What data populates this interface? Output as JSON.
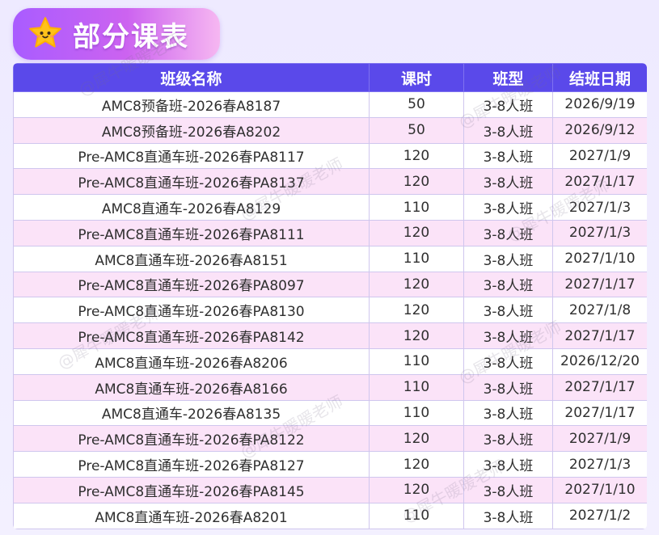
{
  "header": {
    "title": "部分课表"
  },
  "table": {
    "columns": [
      "班级名称",
      "课时",
      "班型",
      "结班日期"
    ],
    "rows": [
      [
        "AMC8预备班-2026春A8187",
        "50",
        "3-8人班",
        "2026/9/19"
      ],
      [
        "AMC8预备班-2026春A8202",
        "50",
        "3-8人班",
        "2026/9/12"
      ],
      [
        "Pre-AMC8直通车班-2026春PA8117",
        "120",
        "3-8人班",
        "2027/1/9"
      ],
      [
        "Pre-AMC8直通车班-2026春PA8137",
        "120",
        "3-8人班",
        "2027/1/17"
      ],
      [
        "AMC8直通车-2026春A8129",
        "110",
        "3-8人班",
        "2027/1/3"
      ],
      [
        "Pre-AMC8直通车班-2026春PA8111",
        "120",
        "3-8人班",
        "2027/1/3"
      ],
      [
        "AMC8直通车班-2026春A8151",
        "110",
        "3-8人班",
        "2027/1/10"
      ],
      [
        "Pre-AMC8直通车班-2026春PA8097",
        "120",
        "3-8人班",
        "2027/1/17"
      ],
      [
        "Pre-AMC8直通车班-2026春PA8130",
        "120",
        "3-8人班",
        "2027/1/8"
      ],
      [
        "Pre-AMC8直通车班-2026春PA8142",
        "120",
        "3-8人班",
        "2027/1/17"
      ],
      [
        "AMC8直通车班-2026春A8206",
        "110",
        "3-8人班",
        "2026/12/20"
      ],
      [
        "AMC8直通车班-2026春A8166",
        "110",
        "3-8人班",
        "2027/1/17"
      ],
      [
        "AMC8直通车-2026春A8135",
        "110",
        "3-8人班",
        "2027/1/17"
      ],
      [
        "Pre-AMC8直通车班-2026春PA8122",
        "120",
        "3-8人班",
        "2027/1/9"
      ],
      [
        "Pre-AMC8直通车班-2026春PA8127",
        "120",
        "3-8人班",
        "2027/1/3"
      ],
      [
        "Pre-AMC8直通车班-2026春PA8145",
        "120",
        "3-8人班",
        "2027/1/10"
      ],
      [
        "AMC8直通车班-2026春A8201",
        "110",
        "3-8人班",
        "2027/1/2"
      ]
    ]
  },
  "watermark": {
    "text": "@犀牛暖暖老师"
  },
  "icons": {
    "title_icon": "star-face-icon"
  },
  "colors": {
    "header_bg": "#5a49ea",
    "row_alt_bg": "#fbe3f8",
    "badge_from": "#a95cff",
    "badge_to": "#f6b7f1",
    "star": "#ffc21a"
  }
}
